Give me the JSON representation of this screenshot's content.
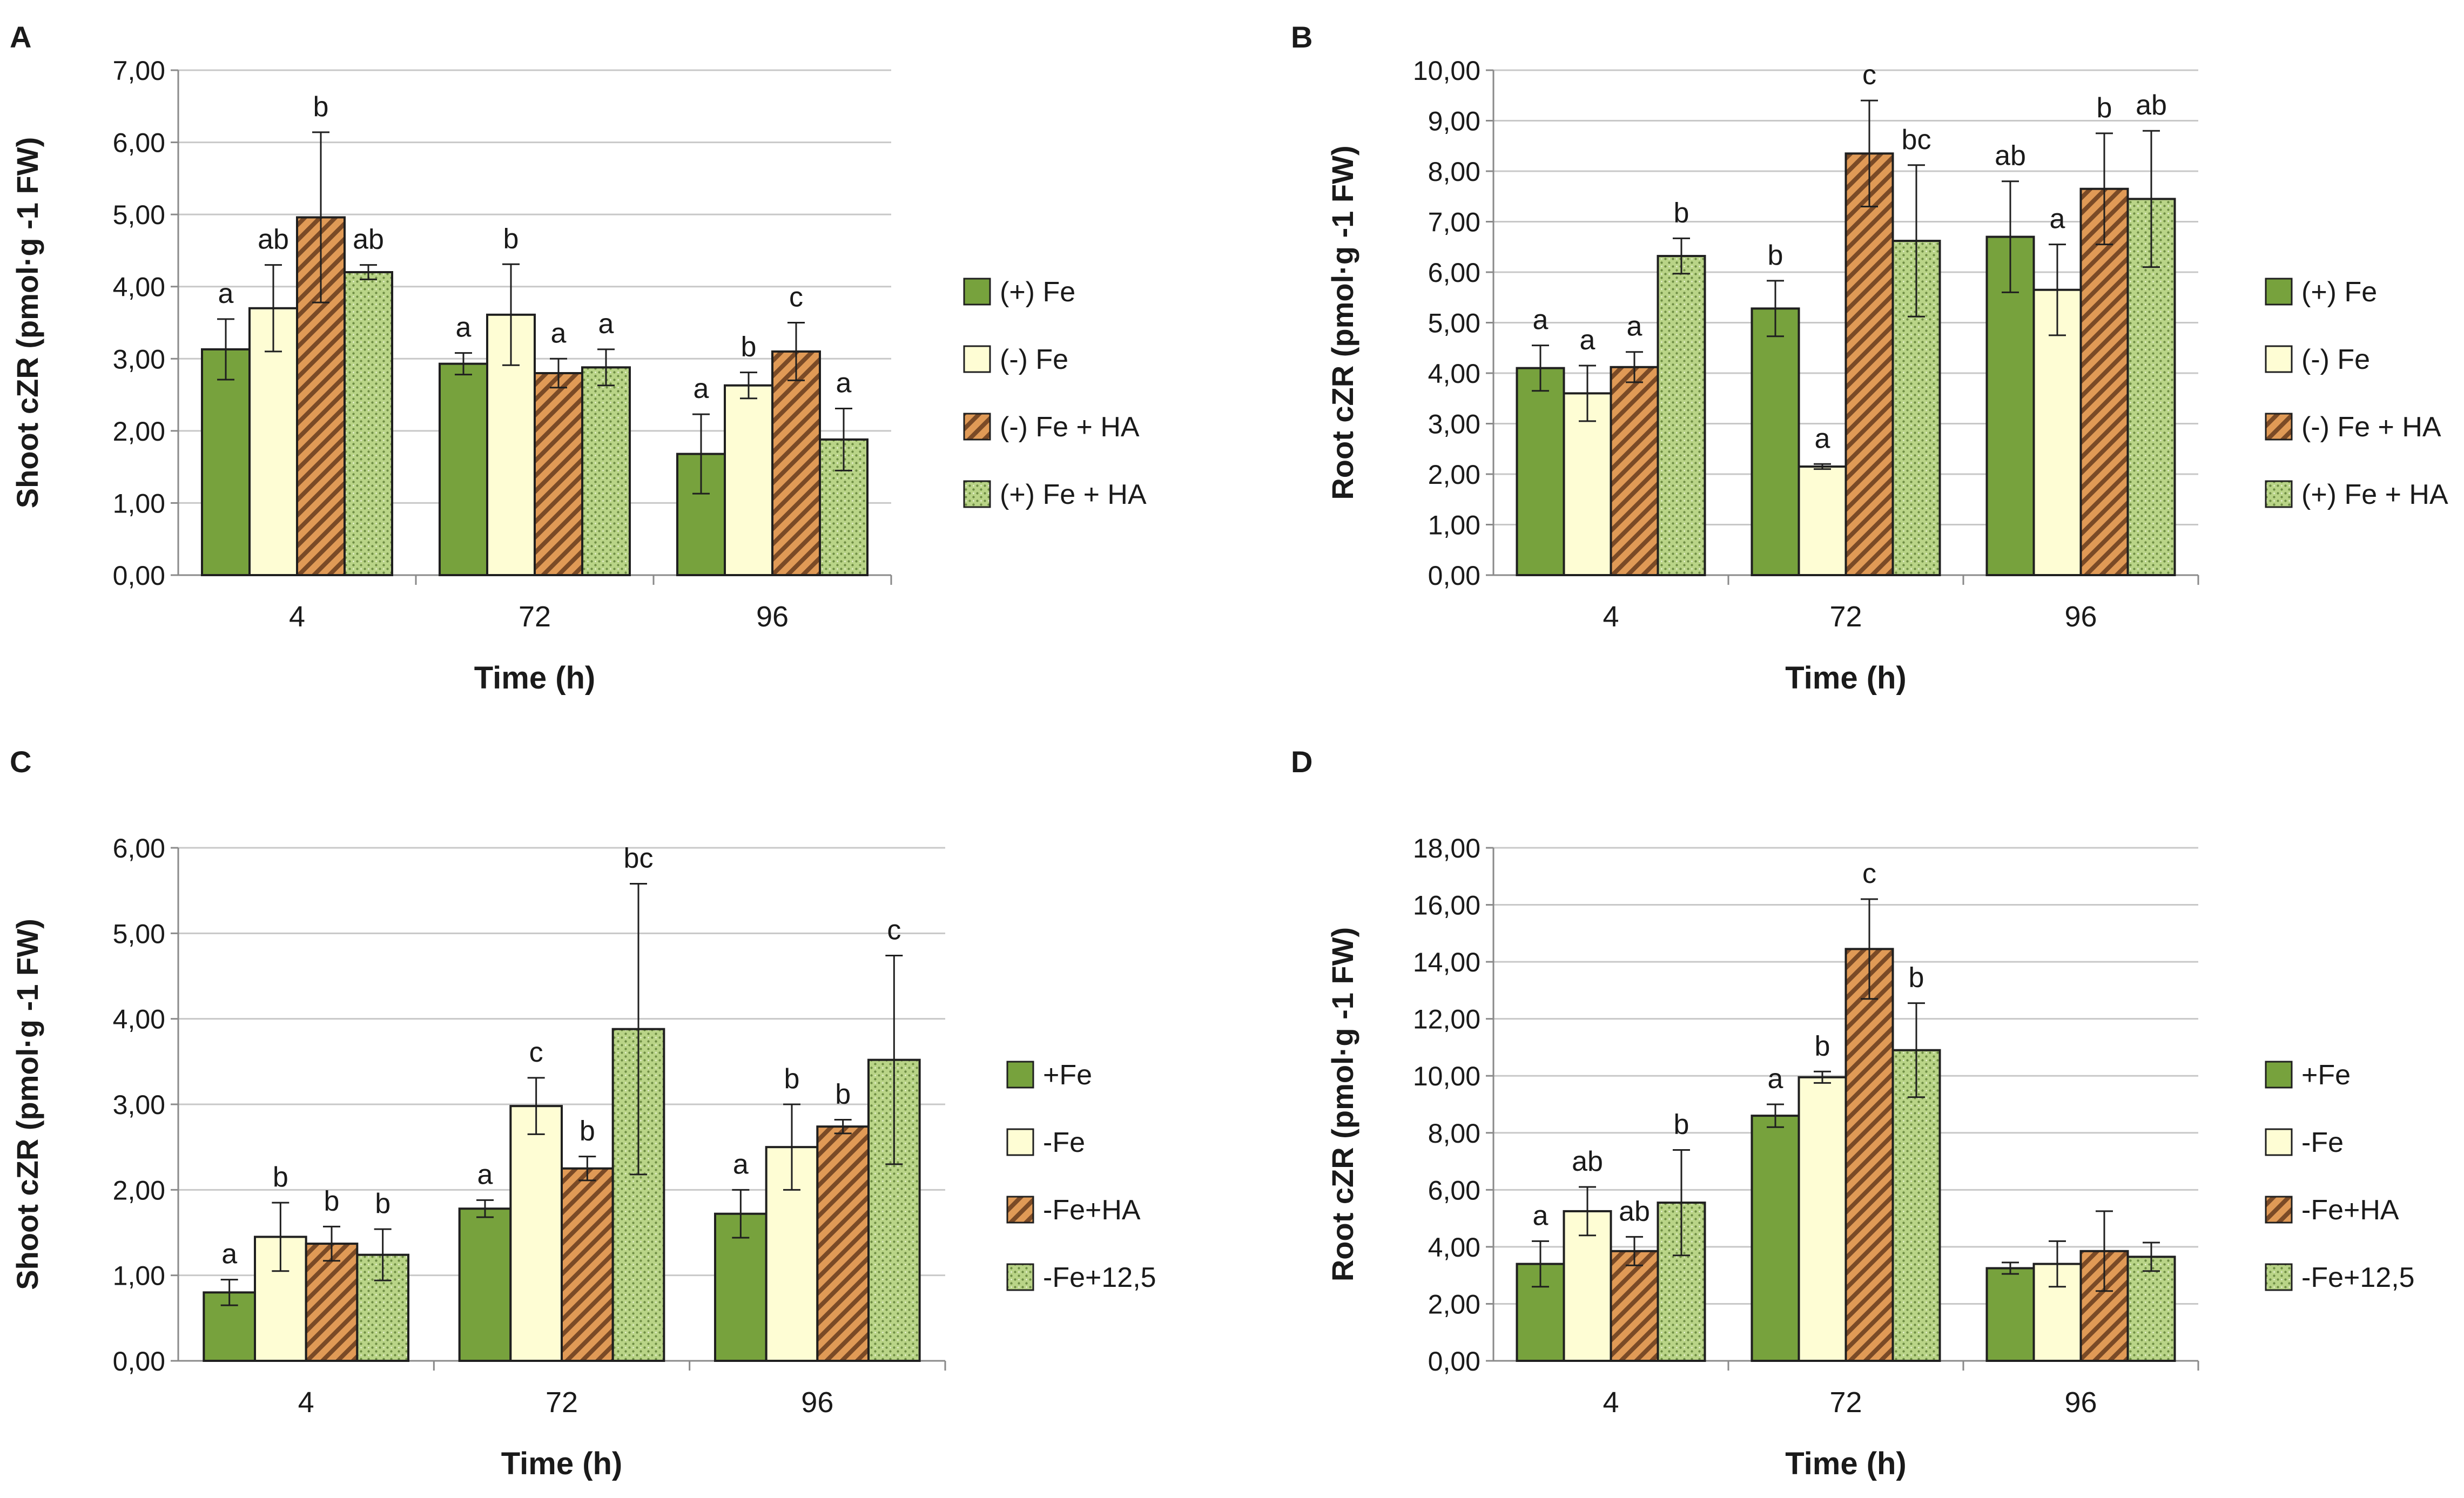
{
  "figure": {
    "colors": {
      "fe_plus": "#77a23d",
      "fe_minus": "#fefdd4",
      "fe_minus_ha_base": "#e09a56",
      "fe_minus_ha_stripe": "#7a4a26",
      "dotted_base": "#b9d487",
      "dotted_dot": "#6f8e45",
      "grid": "#c8c8c8",
      "axis": "#8a8a8a",
      "text": "#1a1a1a"
    }
  },
  "chart_data": [
    {
      "panel": "A",
      "type": "bar",
      "title": "",
      "xlabel": "Time (h)",
      "ylabel": "Shoot cZR (pmol·g -1 FW)",
      "ylim": [
        0,
        7
      ],
      "yticks": [
        "0,00",
        "1,00",
        "2,00",
        "3,00",
        "4,00",
        "5,00",
        "6,00",
        "7,00"
      ],
      "grid": true,
      "legend_position": "right",
      "categories": [
        "4",
        "72",
        "96"
      ],
      "series": [
        {
          "name": "(+) Fe",
          "pattern": "solid-green",
          "values": [
            3.13,
            2.93,
            1.68
          ],
          "errors": [
            0.42,
            0.15,
            0.55
          ],
          "labels": [
            "a",
            "a",
            "a"
          ]
        },
        {
          "name": "(-) Fe",
          "pattern": "light",
          "values": [
            3.7,
            3.61,
            2.63
          ],
          "errors": [
            0.6,
            0.7,
            0.18
          ],
          "labels": [
            "ab",
            "b",
            "b"
          ]
        },
        {
          "name": "(-) Fe + HA",
          "pattern": "striped",
          "values": [
            4.96,
            2.8,
            3.1
          ],
          "errors": [
            1.18,
            0.2,
            0.4
          ],
          "labels": [
            "b",
            "a",
            "c"
          ]
        },
        {
          "name": "(+) Fe + HA",
          "pattern": "dotted",
          "values": [
            4.2,
            2.88,
            1.88
          ],
          "errors": [
            0.1,
            0.25,
            0.43
          ],
          "labels": [
            "ab",
            "a",
            "a"
          ]
        }
      ]
    },
    {
      "panel": "B",
      "type": "bar",
      "title": "",
      "xlabel": "Time (h)",
      "ylabel": "Root cZR (pmol·g -1 FW)",
      "ylim": [
        0,
        10
      ],
      "yticks": [
        "0,00",
        "1,00",
        "2,00",
        "3,00",
        "4,00",
        "5,00",
        "6,00",
        "7,00",
        "8,00",
        "9,00",
        "10,00"
      ],
      "grid": true,
      "legend_position": "right",
      "categories": [
        "4",
        "72",
        "96"
      ],
      "series": [
        {
          "name": "(+) Fe",
          "pattern": "solid-green",
          "values": [
            4.1,
            5.28,
            6.7
          ],
          "errors": [
            0.45,
            0.55,
            1.1
          ],
          "labels": [
            "a",
            "b",
            "ab"
          ]
        },
        {
          "name": "(-) Fe",
          "pattern": "light",
          "values": [
            3.6,
            2.15,
            5.65
          ],
          "errors": [
            0.55,
            0.05,
            0.9
          ],
          "labels": [
            "a",
            "a",
            "a"
          ]
        },
        {
          "name": "(-) Fe + HA",
          "pattern": "striped",
          "values": [
            4.12,
            8.35,
            7.65
          ],
          "errors": [
            0.3,
            1.05,
            1.1
          ],
          "labels": [
            "a",
            "c",
            "b"
          ]
        },
        {
          "name": "(+) Fe + HA",
          "pattern": "dotted",
          "values": [
            6.32,
            6.62,
            7.45
          ],
          "errors": [
            0.35,
            1.5,
            1.35
          ],
          "labels": [
            "b",
            "bc",
            "ab"
          ]
        }
      ]
    },
    {
      "panel": "C",
      "type": "bar",
      "title": "",
      "xlabel": "Time (h)",
      "ylabel": "Shoot cZR (pmol·g -1 FW)",
      "ylim": [
        0,
        6
      ],
      "yticks": [
        "0,00",
        "1,00",
        "2,00",
        "3,00",
        "4,00",
        "5,00",
        "6,00"
      ],
      "grid": true,
      "legend_position": "right",
      "categories": [
        "4",
        "72",
        "96"
      ],
      "series": [
        {
          "name": "+Fe",
          "pattern": "solid-green",
          "values": [
            0.8,
            1.78,
            1.72
          ],
          "errors": [
            0.15,
            0.1,
            0.28
          ],
          "labels": [
            "a",
            "a",
            "a"
          ]
        },
        {
          "name": "-Fe",
          "pattern": "light",
          "values": [
            1.45,
            2.98,
            2.5
          ],
          "errors": [
            0.4,
            0.33,
            0.5
          ],
          "labels": [
            "b",
            "c",
            "b"
          ]
        },
        {
          "name": "-Fe+HA",
          "pattern": "striped",
          "values": [
            1.37,
            2.25,
            2.74
          ],
          "errors": [
            0.2,
            0.14,
            0.08
          ],
          "labels": [
            "b",
            "b",
            "b"
          ]
        },
        {
          "name": "-Fe+12,5",
          "pattern": "dotted",
          "values": [
            1.24,
            3.88,
            3.52
          ],
          "errors": [
            0.3,
            1.7,
            1.22
          ],
          "labels": [
            "b",
            "bc",
            "c"
          ]
        }
      ]
    },
    {
      "panel": "D",
      "type": "bar",
      "title": "",
      "xlabel": "Time (h)",
      "ylabel": "Root cZR (pmol·g -1 FW)",
      "ylim": [
        0,
        18
      ],
      "yticks": [
        "0,00",
        "2,00",
        "4,00",
        "6,00",
        "8,00",
        "10,00",
        "12,00",
        "14,00",
        "16,00",
        "18,00"
      ],
      "grid": true,
      "legend_position": "right",
      "categories": [
        "4",
        "72",
        "96"
      ],
      "series": [
        {
          "name": "+Fe",
          "pattern": "solid-green",
          "values": [
            3.4,
            8.6,
            3.25
          ],
          "errors": [
            0.8,
            0.4,
            0.2
          ],
          "labels": [
            "a",
            "a",
            ""
          ]
        },
        {
          "name": "-Fe",
          "pattern": "light",
          "values": [
            5.25,
            9.95,
            3.4
          ],
          "errors": [
            0.85,
            0.2,
            0.8
          ],
          "labels": [
            "ab",
            "b",
            ""
          ]
        },
        {
          "name": "-Fe+HA",
          "pattern": "striped",
          "values": [
            3.85,
            14.45,
            3.85
          ],
          "errors": [
            0.5,
            1.75,
            1.4
          ],
          "labels": [
            "ab",
            "c",
            ""
          ]
        },
        {
          "name": "-Fe+12,5",
          "pattern": "dotted",
          "values": [
            5.55,
            10.9,
            3.65
          ],
          "errors": [
            1.85,
            1.65,
            0.5
          ],
          "labels": [
            "b",
            "b",
            ""
          ]
        }
      ]
    }
  ]
}
